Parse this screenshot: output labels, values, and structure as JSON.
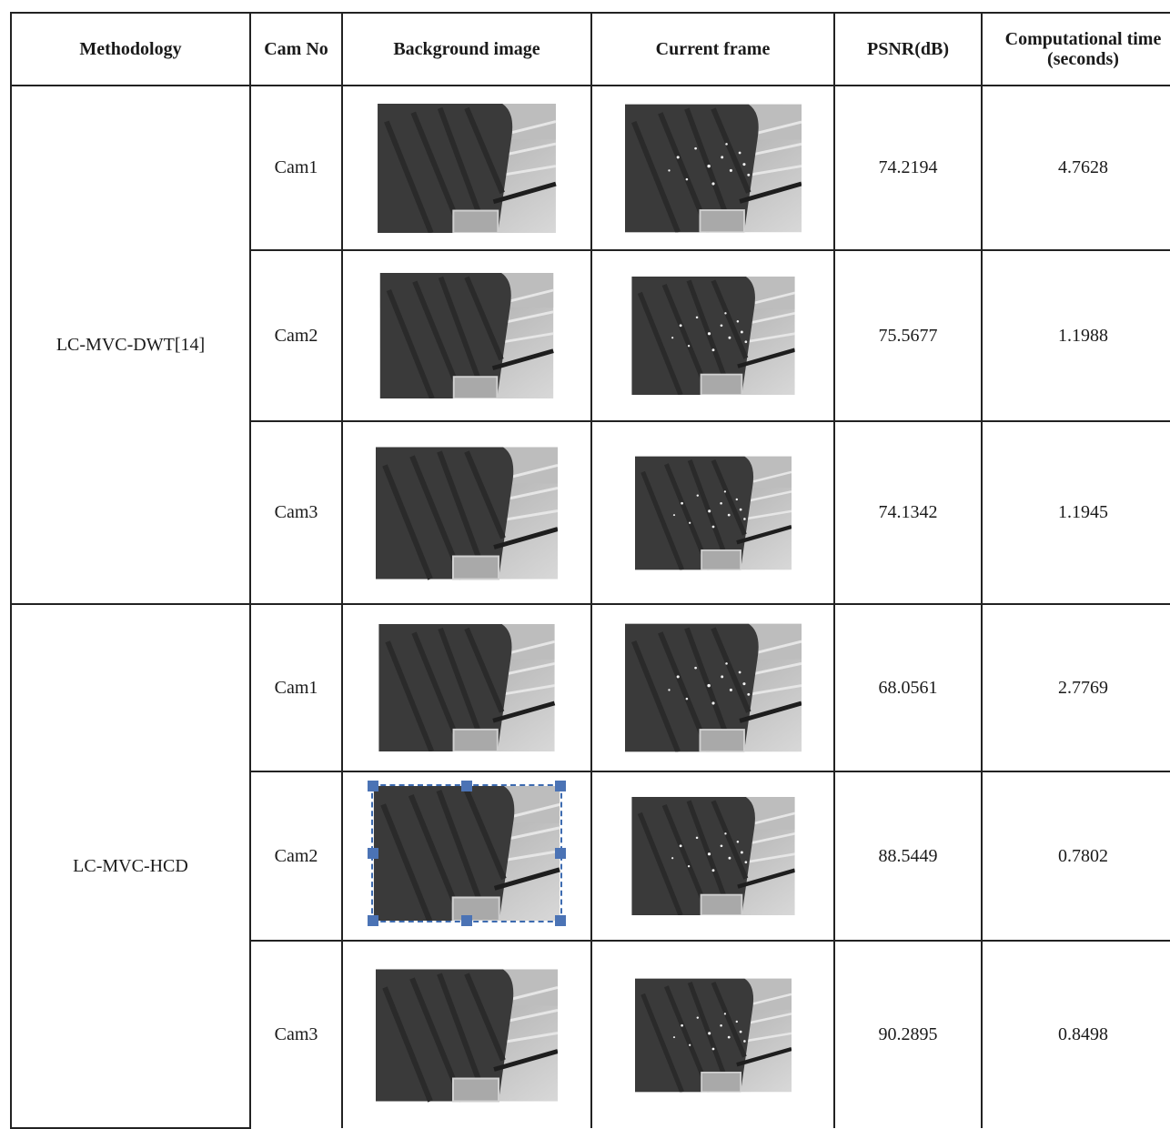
{
  "headers": {
    "methodology": "Methodology",
    "cam_no": "Cam No",
    "background": "Background image",
    "current": "Current frame",
    "psnr": "PSNR(dB)",
    "time": "Computational time (seconds)"
  },
  "groups": [
    {
      "method": "LC-MVC-DWT[14]",
      "rows": [
        {
          "cam": "Cam1",
          "psnr": "74.2194",
          "time": "4.7628"
        },
        {
          "cam": "Cam2",
          "psnr": "75.5677",
          "time": "1.1988"
        },
        {
          "cam": "Cam3",
          "psnr": "74.1342",
          "time": "1.1945"
        }
      ]
    },
    {
      "method": "LC-MVC-HCD",
      "rows": [
        {
          "cam": "Cam1",
          "psnr": "68.0561",
          "time": "2.7769"
        },
        {
          "cam": "Cam2",
          "psnr": "88.5449",
          "time": "0.7802"
        },
        {
          "cam": "Cam3",
          "psnr": "90.2895",
          "time": "0.8498"
        }
      ]
    }
  ],
  "colors": {
    "selection": "#4b73b5",
    "border": "#222222"
  }
}
